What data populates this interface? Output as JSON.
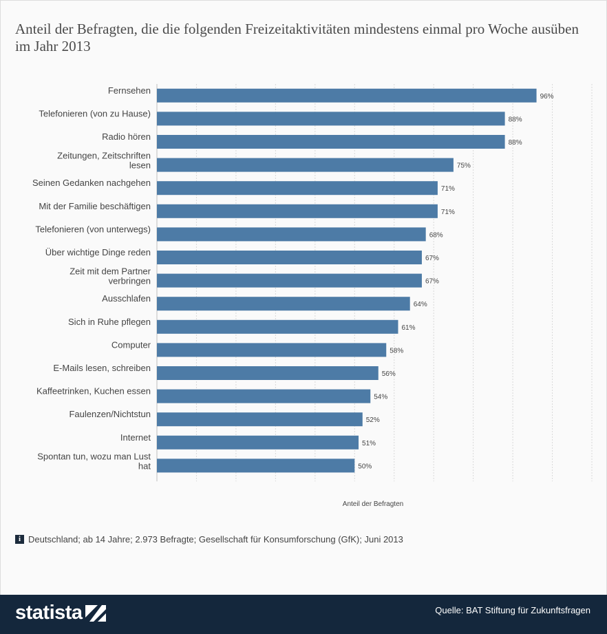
{
  "title": "Anteil der Befragten, die die folgenden Freizeitaktivitäten mindestens einmal pro Woche ausüben im Jahr 2013",
  "footnote": "Deutschland; ab 14 Jahre; 2.973 Befragte; Gesellschaft für Konsumforschung (GfK); Juni 2013",
  "info_icon_glyph": "i",
  "footer": {
    "logo_text": "statista",
    "source": "Quelle: BAT Stiftung für Zukunftsfragen"
  },
  "colors": {
    "bar": "#4d7ba6",
    "footer_bg": "#14273c"
  },
  "chart_data": {
    "type": "bar",
    "orientation": "horizontal",
    "categories": [
      "Fernsehen",
      "Telefonieren (von zu Hause)",
      "Radio hören",
      "Zeitungen, Zeitschriften lesen",
      "Seinen Gedanken nachgehen",
      "Mit der Familie beschäftigen",
      "Telefonieren (von unterwegs)",
      "Über wichtige Dinge reden",
      "Zeit mit dem Partner verbringen",
      "Ausschlafen",
      "Sich in Ruhe pflegen",
      "Computer",
      "E-Mails lesen, schreiben",
      "Kaffeetrinken, Kuchen essen",
      "Faulenzen/Nichtstun",
      "Internet",
      "Spontan tun, wozu man Lust hat"
    ],
    "values": [
      96,
      88,
      88,
      75,
      71,
      71,
      68,
      67,
      67,
      64,
      61,
      58,
      56,
      54,
      52,
      51,
      50
    ],
    "value_labels": [
      "96%",
      "88%",
      "88%",
      "75%",
      "71%",
      "71%",
      "68%",
      "67%",
      "67%",
      "64%",
      "61%",
      "58%",
      "56%",
      "54%",
      "52%",
      "51%",
      "50%"
    ],
    "xlabel": "Anteil der Befragten",
    "xlim": [
      0,
      110
    ],
    "grid": true
  }
}
